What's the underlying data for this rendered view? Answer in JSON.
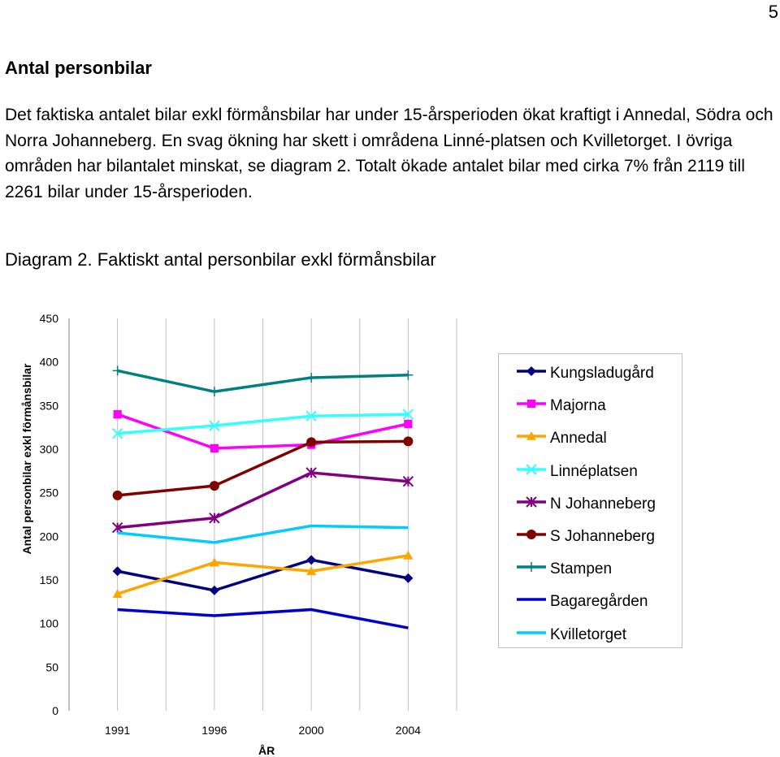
{
  "page_number": "5",
  "heading": "Antal personbilar",
  "paragraph": "Det faktiska antalet bilar exkl förmånsbilar har under 15-årsperioden ökat kraftigt i Annedal, Södra och Norra Johanneberg. En svag ökning har skett i områdena Linné-platsen och Kvilletorget. I övriga områden har bilantalet minskat, se diagram 2. Totalt ökade antalet bilar med cirka 7% från 2119 till 2261 bilar under 15-årsperioden.",
  "caption": "Diagram 2. Faktiskt antal personbilar exkl förmånsbilar",
  "chart_data": {
    "type": "line",
    "title": "",
    "xlabel": "ÅR",
    "ylabel": "Antal personbilar exkl förmånsbilar",
    "categories": [
      "1991",
      "1996",
      "2000",
      "2004"
    ],
    "ylim": [
      0,
      450
    ],
    "yticks": [
      "0",
      "50",
      "100",
      "150",
      "200",
      "250",
      "300",
      "350",
      "400",
      "450"
    ],
    "grid": "vertical",
    "legend_position": "right",
    "series": [
      {
        "name": "Kungsladugård",
        "values": [
          160,
          138,
          173,
          152
        ],
        "color": "#000080",
        "marker": "diamond"
      },
      {
        "name": "Majorna",
        "values": [
          340,
          301,
          305,
          329
        ],
        "color": "#ff00ff",
        "marker": "square"
      },
      {
        "name": "Annedal",
        "values": [
          134,
          170,
          160,
          178
        ],
        "color": "#ffa500",
        "marker": "triangle"
      },
      {
        "name": "Linnéplatsen",
        "values": [
          318,
          327,
          338,
          340
        ],
        "color": "#33ffff",
        "marker": "x"
      },
      {
        "name": "N Johanneberg",
        "values": [
          210,
          221,
          273,
          263
        ],
        "color": "#800080",
        "marker": "star"
      },
      {
        "name": "S Johanneberg",
        "values": [
          247,
          258,
          308,
          309
        ],
        "color": "#800000",
        "marker": "circle"
      },
      {
        "name": "Stampen",
        "values": [
          390,
          366,
          382,
          385
        ],
        "color": "#008080",
        "marker": "plus"
      },
      {
        "name": "Bagaregården",
        "values": [
          116,
          109,
          116,
          95
        ],
        "color": "#0000cc",
        "marker": "none"
      },
      {
        "name": "Kvilletorget",
        "values": [
          204,
          193,
          212,
          210
        ],
        "color": "#00ccff",
        "marker": "none"
      }
    ]
  }
}
